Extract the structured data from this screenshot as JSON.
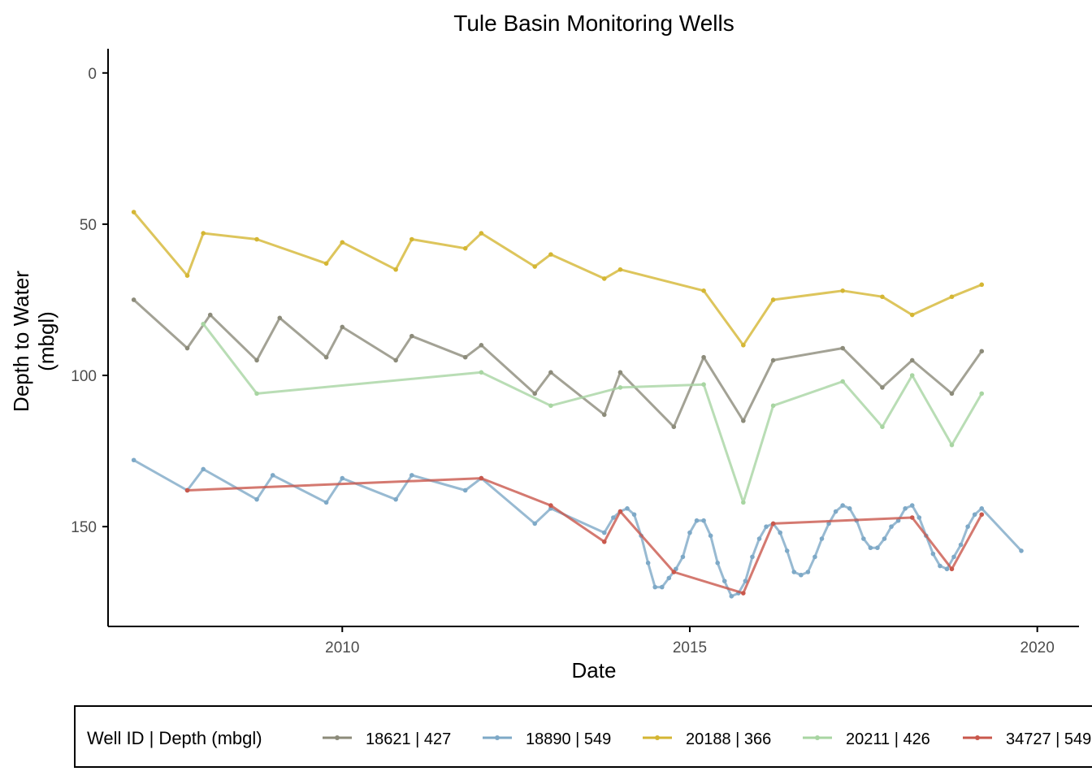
{
  "chart_data": {
    "type": "line",
    "title": "Tule Basin Monitoring Wells",
    "xlabel": "Date",
    "ylabel_lines": [
      "Depth to Water",
      "(mbgl)"
    ],
    "x_ticks": [
      2010,
      2015,
      2020
    ],
    "y_ticks": [
      0,
      50,
      100,
      150
    ],
    "xlim": [
      2006.63,
      2020.6
    ],
    "ylim": [
      -8,
      183
    ],
    "y_reversed": true,
    "grid": false,
    "legend": {
      "title": "Well ID | Depth (mbgl)",
      "position": "bottom"
    },
    "series": [
      {
        "name": "18621 | 427",
        "color": "#8c8b7a",
        "x": [
          2007.0,
          2007.77,
          2008.1,
          2008.77,
          2009.1,
          2009.77,
          2010.0,
          2010.77,
          2011.0,
          2011.77,
          2012.0,
          2012.77,
          2013.0,
          2013.77,
          2014.0,
          2014.77,
          2015.2,
          2015.77,
          2016.2,
          2017.2,
          2017.77,
          2018.2,
          2018.77,
          2019.2
        ],
        "y": [
          75,
          91,
          80,
          95,
          81,
          94,
          84,
          95,
          87,
          94,
          90,
          106,
          99,
          113,
          99,
          117,
          94,
          115,
          95,
          91,
          104,
          95,
          106,
          92
        ]
      },
      {
        "name": "18890 | 549",
        "color": "#7ea9c7",
        "x": [
          2007.0,
          2007.77,
          2008.0,
          2008.77,
          2009.0,
          2009.77,
          2010.0,
          2010.77,
          2011.0,
          2011.77,
          2012.0,
          2012.77,
          2013.0,
          2013.77,
          2013.9,
          2014.0,
          2014.1,
          2014.2,
          2014.3,
          2014.4,
          2014.5,
          2014.6,
          2014.7,
          2014.8,
          2014.9,
          2015.0,
          2015.1,
          2015.2,
          2015.3,
          2015.4,
          2015.5,
          2015.6,
          2015.7,
          2015.8,
          2015.9,
          2016.0,
          2016.1,
          2016.2,
          2016.3,
          2016.4,
          2016.5,
          2016.6,
          2016.7,
          2016.8,
          2016.9,
          2017.0,
          2017.1,
          2017.2,
          2017.3,
          2017.4,
          2017.5,
          2017.6,
          2017.7,
          2017.8,
          2017.9,
          2018.0,
          2018.1,
          2018.2,
          2018.3,
          2018.4,
          2018.5,
          2018.6,
          2018.7,
          2018.8,
          2018.9,
          2019.0,
          2019.1,
          2019.2,
          2019.77
        ],
        "y": [
          128,
          138,
          131,
          141,
          133,
          142,
          134,
          141,
          133,
          138,
          134,
          149,
          144,
          152,
          147,
          145,
          144,
          146,
          153,
          162,
          170,
          170,
          167,
          164,
          160,
          152,
          148,
          148,
          153,
          162,
          168,
          173,
          172,
          168,
          160,
          154,
          150,
          149,
          152,
          158,
          165,
          166,
          165,
          160,
          154,
          149,
          145,
          143,
          144,
          148,
          154,
          157,
          157,
          154,
          150,
          148,
          144,
          143,
          147,
          153,
          159,
          163,
          164,
          160,
          156,
          150,
          146,
          144,
          158
        ]
      },
      {
        "name": "20188 | 366",
        "color": "#d4b633",
        "x": [
          2007.0,
          2007.77,
          2008.0,
          2008.77,
          2009.77,
          2010.0,
          2010.77,
          2011.0,
          2011.77,
          2012.0,
          2012.77,
          2013.0,
          2013.77,
          2014.0,
          2015.2,
          2015.77,
          2016.2,
          2017.2,
          2017.77,
          2018.2,
          2018.77,
          2019.2
        ],
        "y": [
          46,
          67,
          53,
          55,
          63,
          56,
          65,
          55,
          58,
          53,
          64,
          60,
          68,
          65,
          72,
          90,
          75,
          72,
          74,
          80,
          74,
          70
        ]
      },
      {
        "name": "20211 | 426",
        "color": "#a8d5a2",
        "x": [
          2008.0,
          2008.77,
          2012.0,
          2013.0,
          2014.0,
          2015.2,
          2015.77,
          2016.2,
          2017.2,
          2017.77,
          2018.2,
          2018.77,
          2019.2
        ],
        "y": [
          83,
          106,
          99,
          110,
          104,
          103,
          142,
          110,
          102,
          117,
          100,
          123,
          106
        ]
      },
      {
        "name": "34727 | 549",
        "color": "#c9584c",
        "x": [
          2007.77,
          2012.0,
          2013.0,
          2013.77,
          2014.0,
          2014.77,
          2015.77,
          2016.2,
          2018.2,
          2018.77,
          2019.2
        ],
        "y": [
          138,
          134,
          143,
          155,
          145,
          165,
          172,
          149,
          147,
          164,
          146
        ]
      }
    ]
  }
}
